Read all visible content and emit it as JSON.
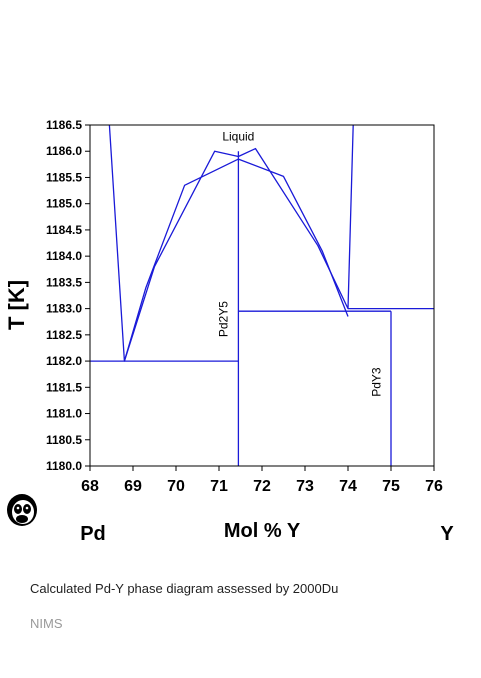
{
  "chart_data": {
    "type": "line",
    "title": "",
    "xlabel": "Mol % Y",
    "ylabel": "T [K]",
    "xlim": [
      68,
      76
    ],
    "ylim": [
      1180.0,
      1186.5
    ],
    "x_ticks": [
      "68",
      "69",
      "70",
      "71",
      "72",
      "73",
      "74",
      "75",
      "76"
    ],
    "y_ticks": [
      "1180.0",
      "1180.5",
      "1181.0",
      "1181.5",
      "1182.0",
      "1182.5",
      "1183.0",
      "1183.5",
      "1184.0",
      "1184.5",
      "1185.0",
      "1185.5",
      "1186.0",
      "1186.5"
    ],
    "end_labels": {
      "left": "Pd",
      "right": "Y"
    },
    "color": "#1a1ad8",
    "series": [
      {
        "points": [
          [
            68.45,
            1186.5
          ],
          [
            68.8,
            1182.0
          ],
          [
            69.3,
            1183.4
          ],
          [
            70.2,
            1185.35
          ],
          [
            71.45,
            1185.85
          ],
          [
            72.5,
            1185.52
          ],
          [
            73.4,
            1184.1
          ],
          [
            74.0,
            1182.85
          ]
        ]
      },
      {
        "points": [
          [
            68.8,
            1182.0
          ],
          [
            69.5,
            1183.8
          ],
          [
            70.9,
            1186.0
          ],
          [
            71.45,
            1185.9
          ],
          [
            71.85,
            1186.05
          ],
          [
            73.3,
            1184.2
          ],
          [
            74.0,
            1183.0
          ],
          [
            74.12,
            1186.5
          ]
        ]
      },
      {
        "points": [
          [
            68.0,
            1182.0
          ],
          [
            71.45,
            1182.0
          ]
        ]
      },
      {
        "points": [
          [
            71.45,
            1186.0
          ],
          [
            71.45,
            1180.0
          ]
        ]
      },
      {
        "points": [
          [
            71.45,
            1182.95
          ],
          [
            75.0,
            1182.95
          ]
        ]
      },
      {
        "points": [
          [
            74.0,
            1183.0
          ],
          [
            76.0,
            1183.0
          ]
        ]
      },
      {
        "points": [
          [
            75.0,
            1182.95
          ],
          [
            75.0,
            1180.0
          ]
        ]
      }
    ],
    "annotations": [
      {
        "text": "Liquid",
        "x": 71.45,
        "y": 1186.2
      },
      {
        "text": "Pd2Y5",
        "x": 71.2,
        "y": 1182.8,
        "rotated": true
      },
      {
        "text": "PdY3",
        "x": 74.75,
        "y": 1181.6,
        "rotated": true
      }
    ]
  },
  "caption": "Calculated Pd-Y phase diagram assessed by 2000Du",
  "credit": "NIMS",
  "logo_icon": "panda-icon"
}
